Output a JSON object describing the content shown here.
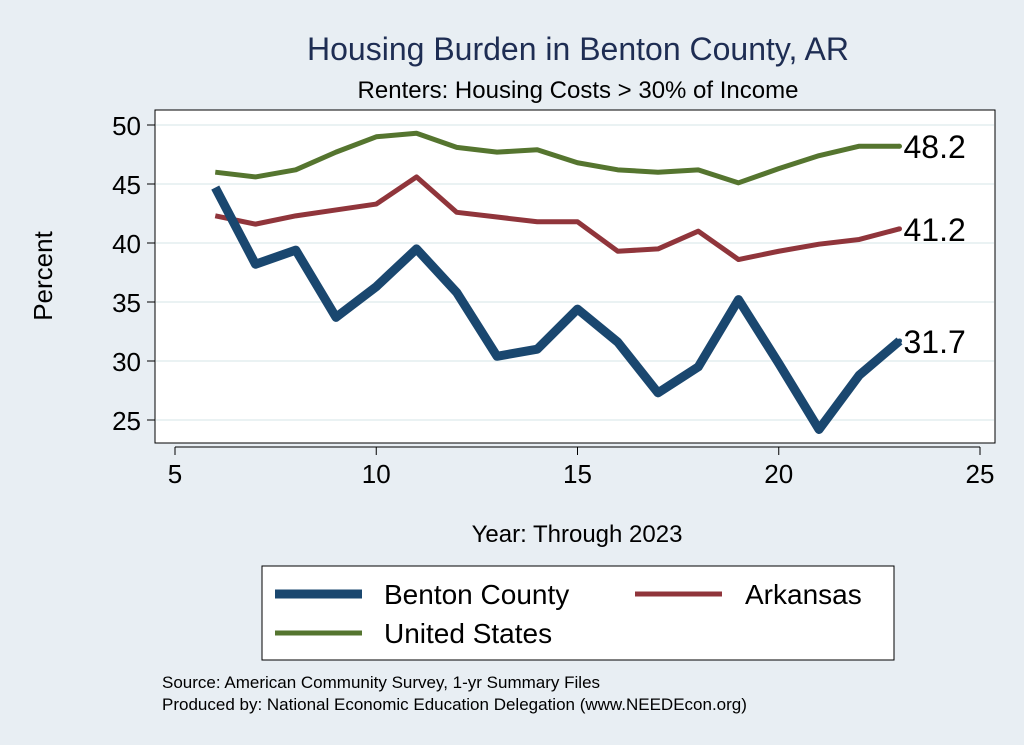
{
  "chart_data": {
    "type": "line",
    "title": "Housing Burden in Benton County, AR",
    "subtitle": "Renters: Housing Costs > 30% of Income",
    "xlabel": "Year: Through 2023",
    "ylabel": "Percent",
    "xlim": [
      5,
      25
    ],
    "ylim": [
      23,
      51
    ],
    "x_ticks": [
      5,
      10,
      15,
      20,
      25
    ],
    "y_ticks": [
      25,
      30,
      35,
      40,
      45,
      50
    ],
    "grid": true,
    "legend_position": "bottom",
    "x": [
      6,
      7,
      8,
      9,
      10,
      11,
      12,
      13,
      14,
      15,
      16,
      17,
      18,
      19,
      20,
      21,
      22,
      23
    ],
    "series": [
      {
        "name": "Benton County",
        "color": "#1a476f",
        "values": [
          44.7,
          38.2,
          39.4,
          33.7,
          36.3,
          39.5,
          35.8,
          30.4,
          31.0,
          34.4,
          31.6,
          27.3,
          29.5,
          35.2,
          29.8,
          24.2,
          28.8,
          31.7
        ],
        "end_label": "31.7"
      },
      {
        "name": "Arkansas",
        "color": "#90353b",
        "values": [
          42.3,
          41.6,
          42.3,
          42.8,
          43.3,
          45.6,
          42.6,
          42.2,
          41.8,
          41.8,
          39.3,
          39.5,
          41.0,
          38.6,
          39.3,
          39.9,
          40.3,
          41.2
        ],
        "end_label": "41.2"
      },
      {
        "name": "United States",
        "color": "#55752f",
        "values": [
          46.0,
          45.6,
          46.2,
          47.7,
          49.0,
          49.3,
          48.1,
          47.7,
          47.9,
          46.8,
          46.2,
          46.0,
          46.2,
          45.1,
          46.3,
          47.4,
          48.2,
          48.2
        ],
        "end_label": "48.2"
      }
    ]
  },
  "notes": {
    "source": "Source: American Community Survey, 1-yr Summary Files",
    "produced_by": "Produced by: National Economic Education Delegation (www.NEEDEcon.org)"
  }
}
